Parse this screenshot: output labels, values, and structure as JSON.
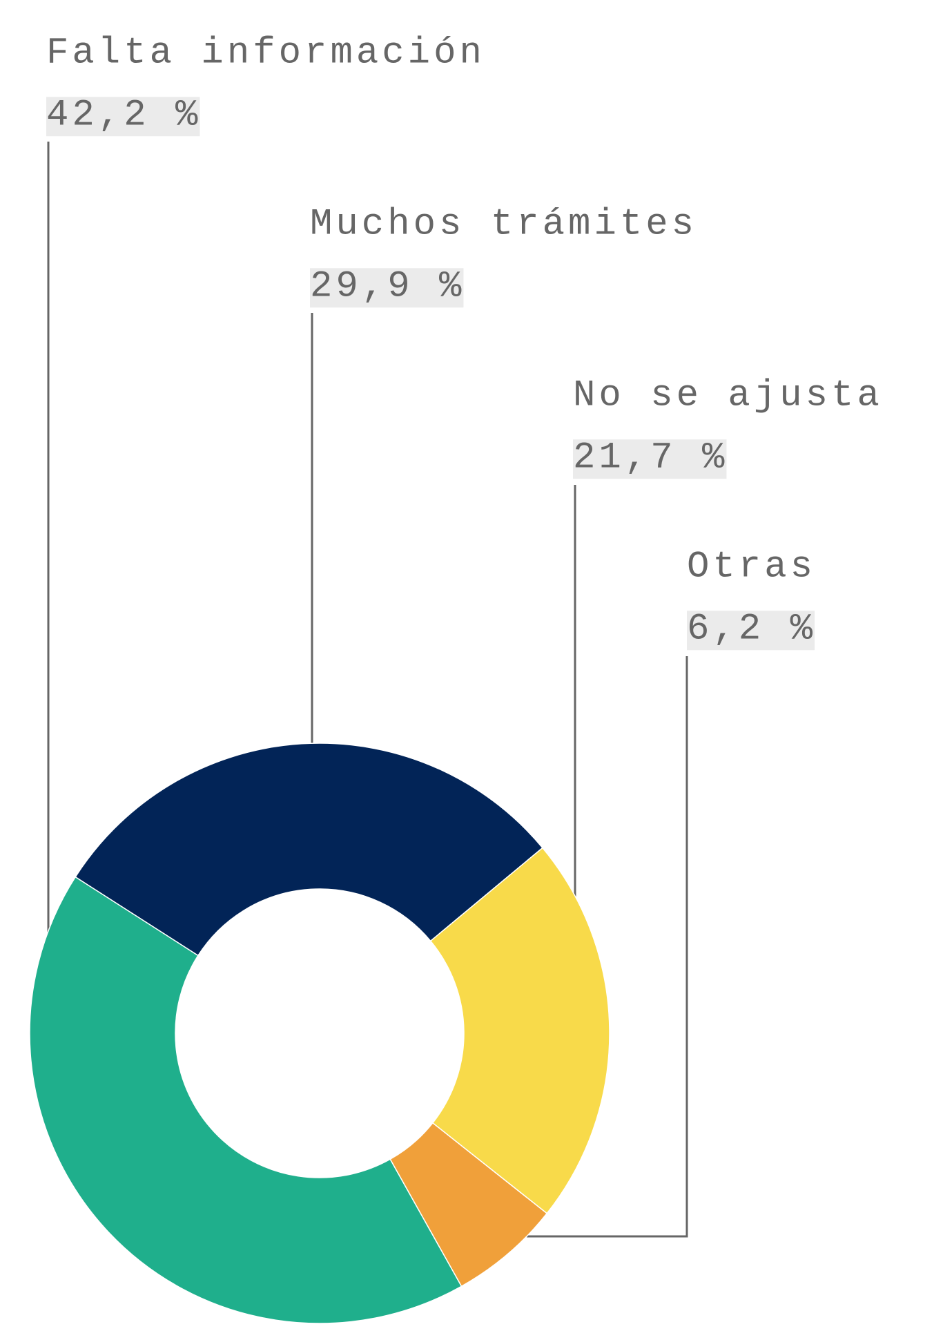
{
  "chart_data": {
    "type": "donut",
    "categories": [
      "Falta información",
      "Muchos trámites",
      "No se ajusta",
      "Otras"
    ],
    "values": [
      42.2,
      29.9,
      21.7,
      6.2
    ],
    "value_labels": [
      "42,2 %",
      "29,9 %",
      "21,7 %",
      "6,2 %"
    ],
    "colors": [
      "#1faf8c",
      "#022457",
      "#f8da4a",
      "#f0a03a"
    ]
  }
}
